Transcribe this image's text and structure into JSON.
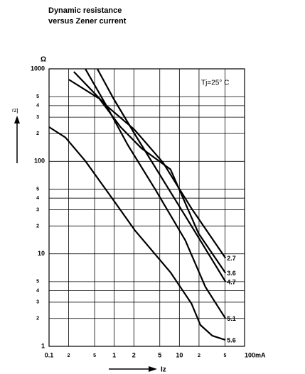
{
  "chart_data": {
    "type": "line",
    "title": "Dynamic resistance",
    "subtitle": "versus Zener current",
    "y_unit": "Ω",
    "y_label": "rzj",
    "x_label": "Iz",
    "annotation": "Tj=25° C",
    "log_x": true,
    "log_y": true,
    "grid": true,
    "xlim": [
      0.1,
      100
    ],
    "ylim": [
      1,
      1000
    ],
    "xticks": [
      0.1,
      {
        "value": 0.2,
        "label": "2"
      },
      {
        "value": 0.5,
        "label": "5"
      },
      1,
      2,
      5,
      10,
      {
        "value": 20,
        "label": "2"
      },
      {
        "value": 50,
        "label": "5"
      },
      {
        "value": 100,
        "label": "100mA"
      }
    ],
    "yticks": [
      1,
      2,
      3,
      4,
      5,
      10,
      {
        "value": 20,
        "label": "2"
      },
      {
        "value": 30,
        "label": "3"
      },
      {
        "value": 40,
        "label": "4"
      },
      {
        "value": 50,
        "label": "5"
      },
      100,
      {
        "value": 200,
        "label": "2"
      },
      {
        "value": 300,
        "label": "3"
      },
      {
        "value": 400,
        "label": "4"
      },
      {
        "value": 500,
        "label": "5"
      },
      1000
    ],
    "series": [
      {
        "name": "2.7",
        "color": "#000000",
        "x": [
          0.24,
          0.76,
          2.0,
          2.6,
          5.6,
          15.3,
          51
        ],
        "values": [
          930,
          400,
          223,
          181,
          97,
          31,
          9
        ]
      },
      {
        "name": "3.6",
        "color": "#000000",
        "x": [
          0.2,
          0.59,
          1.25,
          2.6,
          7.3,
          19.6,
          51
        ],
        "values": [
          767,
          476,
          235,
          139,
          82,
          16.7,
          6.2
        ]
      },
      {
        "name": "4.7",
        "color": "#000000",
        "x": [
          0.55,
          0.975,
          2.07,
          5.6,
          15.3,
          51
        ],
        "values": [
          1000,
          476,
          197,
          63,
          20,
          5.0
        ]
      },
      {
        "name": "5.1",
        "color": "#000000",
        "x": [
          0.36,
          0.76,
          1.61,
          4.4,
          12.3,
          25,
          51
        ],
        "values": [
          1000,
          400,
          151,
          48,
          14,
          4.4,
          2.0
        ]
      },
      {
        "name": "5.6",
        "color": "#000000",
        "x": [
          0.1,
          0.178,
          0.36,
          1,
          2.07,
          7.3,
          15.3,
          21,
          32,
          51
        ],
        "values": [
          235,
          181,
          101,
          37,
          18,
          6.3,
          2.9,
          1.7,
          1.3,
          1.17
        ]
      }
    ]
  }
}
